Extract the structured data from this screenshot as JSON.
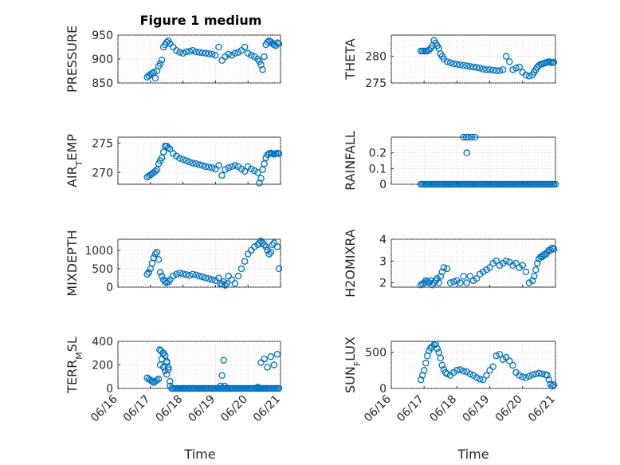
{
  "title": "Figure 1 medium",
  "xlabel": "Time",
  "x_tick_labels": [
    "06/16",
    "06/17",
    "06/18",
    "06/19",
    "06/20",
    "06/21"
  ],
  "chart_data": [
    {
      "type": "scatter",
      "ylabel": "PRESSURE",
      "ylim": [
        850,
        950
      ],
      "yticks": [
        "850",
        "900",
        "950"
      ],
      "xlim": [
        0,
        5
      ],
      "grid": true,
      "color": "#0072bd",
      "x": [
        0.9,
        0.95,
        1.0,
        1.05,
        1.1,
        1.15,
        1.2,
        1.25,
        1.3,
        1.35,
        1.4,
        1.45,
        1.5,
        1.55,
        1.6,
        1.7,
        1.8,
        1.9,
        2.0,
        2.1,
        2.2,
        2.3,
        2.4,
        2.5,
        2.6,
        2.7,
        2.8,
        2.9,
        3.0,
        3.1,
        3.2,
        3.3,
        3.4,
        3.5,
        3.6,
        3.7,
        3.8,
        3.9,
        4.0,
        4.1,
        4.2,
        4.3,
        4.35,
        4.4,
        4.45,
        4.5,
        4.55,
        4.6,
        4.65,
        4.7,
        4.75,
        4.8,
        4.85,
        4.9,
        4.95
      ],
      "y": [
        862,
        865,
        868,
        870,
        872,
        860,
        875,
        885,
        890,
        898,
        925,
        930,
        935,
        938,
        932,
        925,
        918,
        914,
        912,
        915,
        916,
        918,
        915,
        914,
        913,
        912,
        911,
        910,
        908,
        925,
        897,
        905,
        910,
        908,
        912,
        914,
        918,
        925,
        912,
        908,
        905,
        900,
        895,
        888,
        878,
        905,
        930,
        935,
        938,
        936,
        932,
        930,
        928,
        934,
        932
      ]
    },
    {
      "type": "scatter",
      "ylabel": "THETA",
      "ylim": [
        275,
        284
      ],
      "yticks": [
        "275",
        "280"
      ],
      "xlim": [
        0,
        5
      ],
      "grid": true,
      "color": "#0072bd",
      "x": [
        0.9,
        0.95,
        1.0,
        1.05,
        1.1,
        1.15,
        1.2,
        1.25,
        1.3,
        1.35,
        1.4,
        1.45,
        1.5,
        1.55,
        1.6,
        1.7,
        1.8,
        1.9,
        2.0,
        2.1,
        2.2,
        2.3,
        2.4,
        2.5,
        2.6,
        2.7,
        2.8,
        2.9,
        3.0,
        3.1,
        3.2,
        3.3,
        3.4,
        3.5,
        3.6,
        3.7,
        3.8,
        3.9,
        4.0,
        4.1,
        4.2,
        4.3,
        4.35,
        4.4,
        4.45,
        4.5,
        4.55,
        4.6,
        4.65,
        4.7,
        4.75,
        4.8,
        4.85,
        4.9,
        4.95
      ],
      "y": [
        281,
        281,
        281,
        281,
        281,
        281.2,
        281.5,
        282,
        283,
        282.5,
        282,
        281.5,
        280.5,
        280,
        279.5,
        279,
        278.8,
        278.6,
        278.5,
        278.4,
        278.3,
        278.2,
        278.1,
        278,
        277.9,
        277.8,
        277.6,
        277.5,
        277.5,
        277.4,
        277.3,
        277.3,
        277.5,
        280,
        279,
        277.5,
        277.8,
        278,
        277,
        276.5,
        276.3,
        276.5,
        277,
        277.5,
        278,
        278.3,
        278.5,
        278.6,
        278.7,
        278.8,
        278.9,
        279,
        278.9,
        278.8,
        278.9
      ]
    },
    {
      "type": "scatter",
      "ylabel": "AIR_TEMP",
      "ylim": [
        268,
        276
      ],
      "yticks": [
        "270",
        "275"
      ],
      "xlim": [
        0,
        5
      ],
      "grid": true,
      "color": "#0072bd",
      "x": [
        0.9,
        0.95,
        1.0,
        1.05,
        1.1,
        1.15,
        1.2,
        1.25,
        1.3,
        1.35,
        1.4,
        1.45,
        1.5,
        1.55,
        1.6,
        1.7,
        1.8,
        1.9,
        2.0,
        2.1,
        2.2,
        2.3,
        2.4,
        2.5,
        2.6,
        2.7,
        2.8,
        2.9,
        3.0,
        3.1,
        3.2,
        3.3,
        3.4,
        3.5,
        3.6,
        3.7,
        3.8,
        3.9,
        4.0,
        4.1,
        4.2,
        4.3,
        4.35,
        4.4,
        4.45,
        4.5,
        4.55,
        4.6,
        4.65,
        4.7,
        4.75,
        4.8,
        4.85,
        4.9,
        4.95
      ],
      "y": [
        269.2,
        269.4,
        269.6,
        269.8,
        270,
        270.2,
        270.5,
        271.5,
        272,
        272.5,
        273.5,
        274.5,
        274.5,
        274.2,
        274,
        273.2,
        272.8,
        272.4,
        272.2,
        272,
        271.8,
        271.6,
        271.5,
        271.3,
        271.2,
        271,
        270.9,
        270.8,
        270.6,
        271.2,
        269.5,
        270.5,
        270.8,
        271,
        271.2,
        271,
        270.6,
        270.2,
        271,
        270.6,
        270.3,
        270,
        268.2,
        269,
        270.5,
        271.5,
        272.5,
        273,
        273.2,
        273.3,
        273.2,
        273.1,
        273.2,
        273.3,
        273.2
      ]
    },
    {
      "type": "scatter",
      "ylabel": "RAINFALL",
      "ylim": [
        0,
        0.3
      ],
      "yticks": [
        "0",
        "0.1",
        "0.2"
      ],
      "xlim": [
        0,
        5
      ],
      "grid": true,
      "color": "#0072bd",
      "x": [
        0.9,
        0.95,
        1.0,
        1.05,
        1.1,
        1.15,
        1.2,
        1.25,
        1.3,
        1.35,
        1.4,
        1.45,
        1.5,
        1.55,
        1.6,
        1.65,
        1.7,
        1.75,
        1.8,
        1.85,
        1.9,
        1.95,
        2.0,
        2.05,
        2.1,
        2.15,
        2.2,
        2.25,
        2.3,
        2.35,
        2.4,
        2.45,
        2.5,
        2.55,
        2.6,
        2.65,
        2.7,
        2.75,
        2.8,
        2.85,
        2.9,
        2.95,
        3.0,
        3.05,
        3.1,
        3.15,
        3.2,
        3.25,
        3.3,
        3.35,
        3.4,
        3.45,
        3.5,
        3.55,
        3.6,
        3.65,
        3.7,
        3.75,
        3.8,
        3.85,
        3.9,
        3.95,
        4.0,
        4.05,
        4.1,
        4.15,
        4.2,
        4.25,
        4.3,
        4.35,
        4.4,
        4.45,
        4.5,
        4.55,
        4.6,
        4.65,
        4.7,
        4.75,
        4.8,
        4.85,
        4.9,
        4.95,
        5.0,
        2.2,
        2.28,
        2.3,
        2.35,
        2.45,
        2.55
      ],
      "y": [
        0,
        0,
        0,
        0,
        0,
        0,
        0,
        0,
        0,
        0,
        0,
        0,
        0,
        0,
        0,
        0,
        0,
        0,
        0,
        0,
        0,
        0,
        0,
        0,
        0,
        0,
        0,
        0,
        0,
        0,
        0,
        0,
        0,
        0,
        0,
        0,
        0,
        0,
        0,
        0,
        0,
        0,
        0,
        0,
        0,
        0,
        0,
        0,
        0,
        0,
        0,
        0,
        0,
        0,
        0,
        0,
        0,
        0,
        0,
        0,
        0,
        0,
        0,
        0,
        0,
        0,
        0,
        0,
        0,
        0,
        0,
        0,
        0,
        0,
        0,
        0,
        0,
        0,
        0,
        0,
        0,
        0,
        0,
        0.3,
        0.3,
        0.2,
        0.3,
        0.3,
        0.3
      ]
    },
    {
      "type": "scatter",
      "ylabel": "MIXDEPTH",
      "ylim": [
        0,
        1300
      ],
      "yticks": [
        "0",
        "500",
        "1000"
      ],
      "xlim": [
        0,
        5
      ],
      "grid": true,
      "color": "#0072bd",
      "x": [
        0.9,
        0.95,
        1.0,
        1.05,
        1.1,
        1.15,
        1.2,
        1.25,
        1.3,
        1.35,
        1.4,
        1.45,
        1.5,
        1.55,
        1.6,
        1.7,
        1.8,
        1.9,
        2.0,
        2.1,
        2.2,
        2.3,
        2.4,
        2.5,
        2.6,
        2.7,
        2.8,
        2.9,
        3.0,
        3.1,
        3.15,
        3.2,
        3.25,
        3.3,
        3.35,
        3.4,
        3.5,
        3.6,
        3.7,
        3.8,
        3.9,
        4.0,
        4.1,
        4.2,
        4.3,
        4.35,
        4.4,
        4.45,
        4.5,
        4.55,
        4.6,
        4.65,
        4.7,
        4.75,
        4.8,
        4.9,
        4.95
      ],
      "y": [
        350,
        400,
        500,
        650,
        800,
        900,
        950,
        750,
        400,
        300,
        200,
        150,
        120,
        150,
        200,
        300,
        350,
        380,
        360,
        340,
        320,
        350,
        330,
        300,
        280,
        250,
        230,
        200,
        180,
        250,
        100,
        80,
        150,
        50,
        100,
        300,
        200,
        100,
        300,
        500,
        700,
        900,
        1000,
        1100,
        1150,
        1200,
        1250,
        1200,
        1150,
        1100,
        1000,
        900,
        950,
        1150,
        1200,
        1100,
        500
      ]
    },
    {
      "type": "scatter",
      "ylabel": "H2OMIXRA",
      "ylim": [
        1.8,
        4
      ],
      "yticks": [
        "2",
        "3",
        "4"
      ],
      "xlim": [
        0,
        5
      ],
      "grid": true,
      "color": "#0072bd",
      "x": [
        0.9,
        0.95,
        1.0,
        1.05,
        1.1,
        1.15,
        1.2,
        1.25,
        1.3,
        1.35,
        1.4,
        1.45,
        1.5,
        1.55,
        1.6,
        1.7,
        1.8,
        1.9,
        2.0,
        2.1,
        2.2,
        2.3,
        2.4,
        2.5,
        2.6,
        2.7,
        2.8,
        2.9,
        3.0,
        3.1,
        3.2,
        3.3,
        3.4,
        3.5,
        3.6,
        3.7,
        3.8,
        3.9,
        4.0,
        4.1,
        4.2,
        4.3,
        4.35,
        4.4,
        4.45,
        4.5,
        4.55,
        4.6,
        4.65,
        4.7,
        4.75,
        4.8,
        4.85,
        4.9,
        4.95
      ],
      "y": [
        1.9,
        1.95,
        2.0,
        2.1,
        2.05,
        2.0,
        2.1,
        1.9,
        2.0,
        2.1,
        2.2,
        2.0,
        2.3,
        2.5,
        2.7,
        2.65,
        2.0,
        2.05,
        2.1,
        2.0,
        2.3,
        2.0,
        2.3,
        2.1,
        2.2,
        2.4,
        2.5,
        2.6,
        2.7,
        2.9,
        3.0,
        2.8,
        2.9,
        3.0,
        2.95,
        2.8,
        2.9,
        2.7,
        2.8,
        2.5,
        2.0,
        2.1,
        2.3,
        2.6,
        2.9,
        3.1,
        3.2,
        3.2,
        3.3,
        3.3,
        3.4,
        3.5,
        3.5,
        3.6,
        3.55
      ]
    },
    {
      "type": "scatter",
      "ylabel": "TERR_MSL",
      "ylim": [
        0,
        400
      ],
      "yticks": [
        "0",
        "200",
        "400"
      ],
      "xlim": [
        0,
        5
      ],
      "grid": true,
      "color": "#0072bd",
      "x": [
        0.9,
        0.95,
        1.0,
        1.05,
        1.1,
        1.15,
        1.2,
        1.25,
        1.3,
        1.35,
        1.4,
        1.45,
        1.5,
        1.55,
        1.6,
        1.65,
        1.7,
        1.75,
        1.8,
        1.85,
        1.9,
        1.95,
        2.0,
        2.05,
        2.1,
        2.15,
        2.2,
        2.25,
        2.3,
        2.35,
        2.4,
        2.45,
        2.5,
        2.55,
        2.6,
        2.65,
        2.7,
        2.75,
        2.8,
        2.85,
        2.9,
        2.95,
        3.0,
        3.05,
        3.1,
        3.15,
        3.2,
        3.25,
        3.3,
        3.35,
        3.4,
        3.45,
        3.5,
        3.55,
        3.6,
        3.65,
        3.7,
        3.75,
        3.8,
        3.85,
        3.9,
        3.95,
        4.0,
        4.05,
        4.1,
        4.15,
        4.2,
        4.25,
        4.3,
        4.35,
        4.4,
        4.45,
        4.5,
        4.55,
        4.6,
        4.65,
        4.7,
        4.75,
        4.8,
        4.85,
        4.9,
        4.95,
        1.28,
        1.32,
        1.38,
        1.4,
        1.45,
        1.5,
        1.45,
        1.55,
        1.5,
        1.6,
        3.15,
        3.2,
        3.25,
        3.28,
        4.3,
        4.4,
        4.5,
        4.6,
        4.7,
        4.8,
        4.9
      ],
      "y": [
        90,
        80,
        70,
        60,
        50,
        60,
        70,
        80,
        200,
        250,
        300,
        280,
        220,
        180,
        20,
        0,
        0,
        0,
        0,
        0,
        0,
        0,
        0,
        0,
        0,
        0,
        0,
        0,
        0,
        0,
        0,
        0,
        0,
        0,
        0,
        0,
        0,
        0,
        0,
        0,
        0,
        0,
        0,
        0,
        0,
        0,
        0,
        0,
        0,
        0,
        0,
        0,
        0,
        0,
        0,
        0,
        0,
        0,
        0,
        0,
        0,
        0,
        0,
        0,
        0,
        0,
        0,
        0,
        0,
        0,
        0,
        0,
        0,
        0,
        0,
        0,
        0,
        0,
        0,
        0,
        0,
        0,
        330,
        320,
        300,
        180,
        150,
        120,
        280,
        160,
        230,
        60,
        20,
        110,
        240,
        20,
        10,
        220,
        250,
        180,
        270,
        200,
        290
      ]
    },
    {
      "type": "scatter",
      "ylabel": "SUN_FLUX",
      "ylim": [
        0,
        650
      ],
      "yticks": [
        "0",
        "500"
      ],
      "xlim": [
        0,
        5
      ],
      "grid": true,
      "color": "#0072bd",
      "x": [
        0.9,
        0.95,
        1.0,
        1.05,
        1.1,
        1.15,
        1.2,
        1.25,
        1.3,
        1.35,
        1.4,
        1.45,
        1.5,
        1.55,
        1.6,
        1.65,
        1.7,
        1.8,
        1.9,
        2.0,
        2.1,
        2.2,
        2.3,
        2.4,
        2.5,
        2.6,
        2.7,
        2.8,
        2.9,
        3.0,
        3.1,
        3.2,
        3.3,
        3.4,
        3.5,
        3.6,
        3.7,
        3.8,
        3.9,
        4.0,
        4.1,
        4.2,
        4.3,
        4.4,
        4.5,
        4.6,
        4.7,
        4.75,
        4.8,
        4.85,
        4.9,
        4.95
      ],
      "y": [
        120,
        180,
        250,
        350,
        450,
        520,
        560,
        580,
        600,
        610,
        550,
        500,
        420,
        320,
        260,
        220,
        200,
        180,
        220,
        250,
        260,
        240,
        230,
        200,
        180,
        150,
        130,
        120,
        180,
        250,
        300,
        450,
        470,
        400,
        430,
        380,
        320,
        220,
        180,
        160,
        150,
        170,
        190,
        200,
        210,
        200,
        190,
        180,
        120,
        60,
        30,
        50
      ]
    }
  ]
}
